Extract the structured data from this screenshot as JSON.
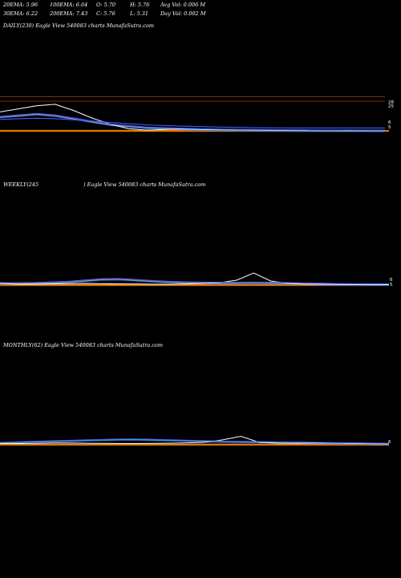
{
  "header": {
    "row1": [
      "20EMA: 5.96",
      "100EMA: 6.64",
      "O: 5.70",
      "H: 5.76",
      "Avg Vol: 0.006  M"
    ],
    "row2": [
      "30EMA: 6.22",
      "200EMA: 7.43",
      "C: 5.76",
      "L: 5.31",
      "Day Vol: 0.002  M"
    ]
  },
  "panels": {
    "daily": {
      "title": "DAILY(230) Eagle   View  540083 charts MunafaSutra.com",
      "axis_labels": [
        "28",
        "25",
        "6",
        "5"
      ]
    },
    "weekly": {
      "title_a": "WEEKLY(245",
      "title_b": ") Eagle   View  540083 charts MunafaSutra.com",
      "axis_labels": [
        "6",
        "5"
      ]
    },
    "monthly": {
      "title": "MONTHLY(62) Eagle   View  540083 charts MunafaSutra.com",
      "axis_labels": [
        "6"
      ]
    }
  },
  "colors": {
    "price": "#ffffff",
    "ema_blue": "#3b5bff",
    "ema_pink": "#ff44cc",
    "ema_red": "#ff3333",
    "ema_green": "#44ff66",
    "orange_band": "#d87a00",
    "level_line": "#b05a1a",
    "bg": "#000000"
  },
  "chart_data": [
    {
      "type": "line",
      "title": "DAILY(230) Eagle   View  540083 charts MunafaSutra.com",
      "series": [
        {
          "name": "",
          "role": "price",
          "values": [
            18,
            20,
            22,
            23,
            19,
            14,
            10,
            7,
            6,
            6.5,
            6.8,
            6.6,
            6.4,
            6.3,
            6.2,
            6.1,
            6.0,
            5.9,
            5.9,
            5.8,
            5.8,
            5.8
          ]
        },
        {
          "name": "",
          "role": "ema-fast",
          "values": [
            15,
            16,
            17,
            16,
            14,
            12,
            10,
            9,
            8,
            7.6,
            7.2,
            6.9,
            6.7,
            6.5,
            6.4,
            6.3,
            6.2,
            6.1,
            6.0,
            6.0,
            5.96,
            5.96
          ]
        },
        {
          "name": "",
          "role": "ema-slow",
          "values": [
            13,
            13.5,
            13.8,
            13.5,
            12.8,
            12,
            11,
            10.2,
            9.5,
            9,
            8.6,
            8.3,
            8.0,
            7.8,
            7.6,
            7.5,
            7.45,
            7.43,
            7.43,
            7.43,
            7.43,
            7.43
          ]
        }
      ],
      "levels": [
        28,
        25,
        6,
        5
      ]
    },
    {
      "type": "line",
      "title": "WEEKLY(245) Eagle   View  540083 charts MunafaSutra.com",
      "series": [
        {
          "name": "",
          "role": "price",
          "values": [
            6.5,
            6,
            6,
            6.2,
            6.4,
            6.5,
            6.3,
            6.2,
            6.1,
            6,
            6,
            6.2,
            6.5,
            7,
            8.5,
            13,
            8,
            6.5,
            6,
            6,
            5.9,
            5.8,
            5.8,
            5.76
          ]
        },
        {
          "name": "",
          "role": "ema",
          "values": [
            7,
            7,
            7.1,
            7.4,
            7.8,
            8.6,
            9.4,
            9.6,
            9,
            8.3,
            7.8,
            7.5,
            7.3,
            7.2,
            7.2,
            7.3,
            7.2,
            7.0,
            6.8,
            6.6,
            6.4,
            6.3,
            6.2,
            6.22
          ]
        }
      ],
      "levels": [
        6,
        5
      ]
    },
    {
      "type": "line",
      "title": "MONTHLY(62) Eagle   View  540083 charts MunafaSutra.com",
      "series": [
        {
          "name": "",
          "role": "price",
          "values": [
            6,
            6,
            6.2,
            6.5,
            6.4,
            6.2,
            6.1,
            6,
            6.1,
            6.3,
            6.5,
            7,
            9,
            12,
            7,
            6.3,
            6.2,
            6.4,
            6.5,
            6.2,
            5.9,
            5.76
          ]
        },
        {
          "name": "",
          "role": "ema",
          "values": [
            7,
            7.5,
            8,
            8.4,
            8.8,
            9.2,
            9.6,
            9.8,
            9.6,
            9.2,
            8.8,
            8.4,
            8,
            7.8,
            7.6,
            7.4,
            7.2,
            7.0,
            6.8,
            6.6,
            6.4,
            6.22
          ]
        }
      ],
      "levels": [
        6
      ]
    }
  ]
}
